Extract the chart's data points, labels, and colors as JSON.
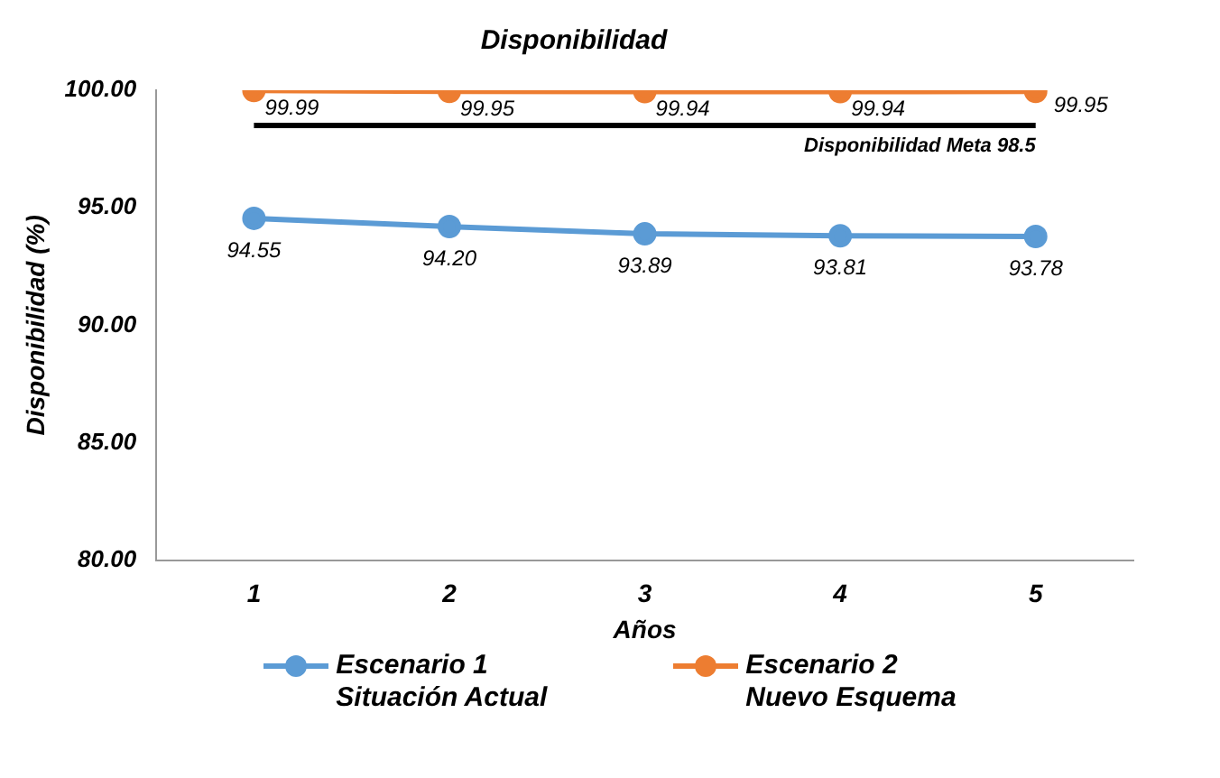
{
  "chart_data": {
    "type": "line",
    "title": "Disponibilidad",
    "xlabel": "Años",
    "ylabel": "Disponibilidad (%)",
    "categories": [
      "1",
      "2",
      "3",
      "4",
      "5"
    ],
    "series": [
      {
        "name": "Escenario 1\nSituación Actual",
        "color": "#5b9bd5",
        "values": [
          94.55,
          94.2,
          93.89,
          93.81,
          93.78
        ],
        "value_labels": [
          "94.55",
          "94.20",
          "93.89",
          "93.81",
          "93.78"
        ]
      },
      {
        "name": "Escenario 2\nNuevo Esquema",
        "color": "#ed7d31",
        "values": [
          99.99,
          99.95,
          99.94,
          99.94,
          99.95
        ],
        "value_labels": [
          "99.99",
          "99.95",
          "99.94",
          "99.94",
          "99.95"
        ]
      }
    ],
    "ylim": [
      80,
      100
    ],
    "yticks": [
      {
        "value": 80,
        "label": "80.00"
      },
      {
        "value": 85,
        "label": "85.00"
      },
      {
        "value": 90,
        "label": "90.00"
      },
      {
        "value": 95,
        "label": "95.00"
      },
      {
        "value": 100,
        "label": "100.00"
      }
    ],
    "ref_lines": [
      {
        "axis": "y",
        "value": 98.5,
        "label": "Disponibilidad Meta 98.5",
        "color": "#000000"
      }
    ],
    "grid": false,
    "legend": "bottom",
    "marker": "circle",
    "line_style": "solid"
  }
}
